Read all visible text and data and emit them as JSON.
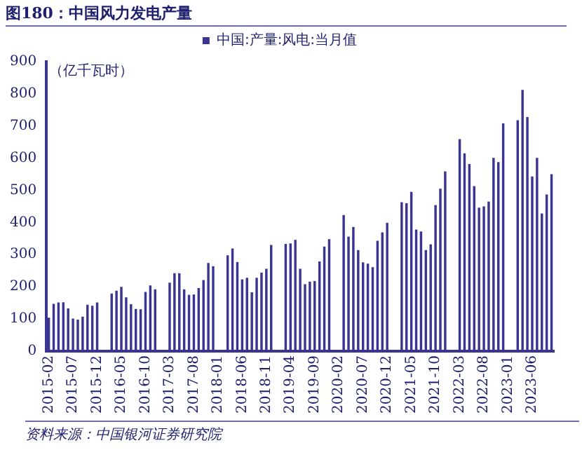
{
  "chart_data": {
    "type": "bar",
    "title": "图180：中国风力发电产量",
    "ylabel": "（亿千瓦时）",
    "annotations": [
      "资料来源：中国银河证券研究院"
    ],
    "categories": [
      "2015-02",
      null,
      null,
      null,
      null,
      "2015-07",
      null,
      null,
      null,
      null,
      "2015-12",
      null,
      null,
      null,
      null,
      "2016-05",
      null,
      null,
      null,
      null,
      "2016-10",
      null,
      null,
      null,
      null,
      "2017-03",
      null,
      null,
      null,
      null,
      "2017-08",
      null,
      null,
      null,
      null,
      "2018-01",
      null,
      null,
      null,
      null,
      "2018-06",
      null,
      null,
      null,
      null,
      "2018-11",
      null,
      null,
      null,
      null,
      "2019-04",
      null,
      null,
      null,
      null,
      "2019-09",
      null,
      null,
      null,
      null,
      "2020-02",
      null,
      null,
      null,
      null,
      "2020-07",
      null,
      null,
      null,
      null,
      "2020-12",
      null,
      null,
      null,
      null,
      "2021-05",
      null,
      null,
      null,
      null,
      "2021-10",
      null,
      null,
      null,
      null,
      "2022-03",
      null,
      null,
      null,
      null,
      "2022-08",
      null,
      null,
      null,
      null,
      "2023-01",
      null,
      null,
      null,
      null,
      "2023-06",
      null,
      null,
      null,
      null
    ],
    "series": [
      {
        "name": "中国:产量:风电:当月值",
        "color": "#3b3592",
        "values": [
          104,
          147,
          151,
          152,
          133,
          101,
          98,
          107,
          144,
          141,
          151,
          null,
          null,
          179,
          188,
          200,
          167,
          146,
          131,
          130,
          184,
          204,
          192,
          null,
          null,
          213,
          242,
          242,
          192,
          175,
          176,
          196,
          221,
          274,
          264,
          null,
          null,
          298,
          319,
          277,
          223,
          228,
          183,
          228,
          244,
          256,
          330,
          null,
          null,
          333,
          335,
          346,
          256,
          208,
          216,
          218,
          279,
          325,
          348,
          null,
          null,
          423,
          356,
          386,
          314,
          276,
          272,
          261,
          343,
          369,
          399,
          null,
          null,
          463,
          460,
          495,
          378,
          372,
          314,
          332,
          454,
          505,
          559,
          null,
          null,
          659,
          615,
          582,
          513,
          446,
          450,
          465,
          601,
          588,
          708,
          null,
          null,
          718,
          812,
          728,
          543,
          601,
          428,
          487,
          550
        ]
      }
    ],
    "ylim": [
      0,
      900
    ],
    "yticks": [
      0,
      100,
      200,
      300,
      400,
      500,
      600,
      700,
      800,
      900
    ],
    "grid": false,
    "legend": "top"
  }
}
